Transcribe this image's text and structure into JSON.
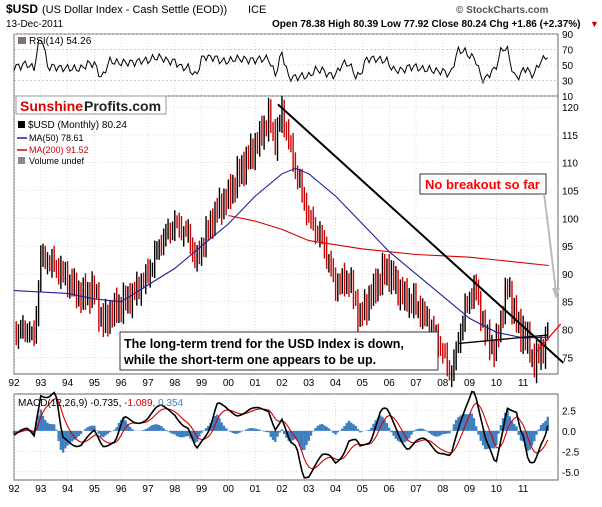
{
  "header": {
    "symbol": "$USD",
    "description": "(US Dollar Index - Cash Settle (EOD))",
    "exchange": "ICE",
    "date": "13-Dec-2011",
    "ohlc": "Open 78.38  High 80.39  Low 77.92  Close 80.24  Chg +1.86 (+2.37%)",
    "watermark": "© StockCharts.com",
    "arrow": "▼"
  },
  "colors": {
    "price_up": "#000000",
    "price_down": "#cc0000",
    "ma50": "#1f1f9a",
    "ma200": "#d40000",
    "trendline": "#000000",
    "annotation_red": "#ff0000",
    "macd_hist": "#3e7fc0",
    "macd_line": "#000000",
    "macd_signal": "#d40000",
    "rsi_fill": "#806f7f",
    "grid": "#c8c8c8",
    "panel_border": "#666666"
  },
  "chart_data": {
    "type": "line",
    "x_labels": [
      "92",
      "93",
      "94",
      "95",
      "96",
      "97",
      "98",
      "99",
      "00",
      "01",
      "02",
      "03",
      "04",
      "05",
      "06",
      "07",
      "08",
      "09",
      "10",
      "11"
    ],
    "price_panel": {
      "legend": [
        "$USD (Monthly) 80.24",
        "MA(50) 78.61",
        "MA(200) 91.52",
        "Volume undef"
      ],
      "ylim": [
        72,
        122
      ],
      "yticks": [
        75,
        80,
        85,
        90,
        95,
        100,
        105,
        110,
        115,
        120
      ],
      "series": [
        {
          "name": "$USD (Monthly)",
          "points": [
            [
              1992.0,
              79.5
            ],
            [
              1992.5,
              80
            ],
            [
              1992.75,
              78.5
            ],
            [
              1993.0,
              93
            ],
            [
              1993.5,
              91.5
            ],
            [
              1994.0,
              89
            ],
            [
              1994.5,
              86
            ],
            [
              1995.0,
              87
            ],
            [
              1995.3,
              81
            ],
            [
              1995.6,
              83
            ],
            [
              1996.0,
              84.5
            ],
            [
              1996.5,
              86.5
            ],
            [
              1997.0,
              90
            ],
            [
              1997.5,
              96
            ],
            [
              1998.0,
              99
            ],
            [
              1998.5,
              97
            ],
            [
              1998.8,
              92
            ],
            [
              1999.0,
              95
            ],
            [
              1999.5,
              101
            ],
            [
              2000.0,
              104
            ],
            [
              2000.5,
              109
            ],
            [
              2001.0,
              113
            ],
            [
              2001.5,
              118
            ],
            [
              2001.75,
              114
            ],
            [
              2002.0,
              119
            ],
            [
              2002.5,
              109
            ],
            [
              2003.0,
              100
            ],
            [
              2003.5,
              96
            ],
            [
              2004.0,
              88
            ],
            [
              2004.5,
              89
            ],
            [
              2004.9,
              82
            ],
            [
              2005.5,
              88
            ],
            [
              2005.9,
              91
            ],
            [
              2006.5,
              86
            ],
            [
              2007.0,
              84.5
            ],
            [
              2007.5,
              81
            ],
            [
              2008.0,
              76
            ],
            [
              2008.3,
              71.5
            ],
            [
              2008.8,
              83
            ],
            [
              2009.2,
              88
            ],
            [
              2009.6,
              79
            ],
            [
              2009.95,
              76
            ],
            [
              2010.4,
              88
            ],
            [
              2010.9,
              79
            ],
            [
              2011.0,
              80
            ],
            [
              2011.4,
              74
            ],
            [
              2011.7,
              76
            ],
            [
              2011.95,
              80.24
            ]
          ]
        },
        {
          "name": "MA(50)",
          "points": [
            [
              1992.0,
              87
            ],
            [
              1994.0,
              86.5
            ],
            [
              1995.0,
              85.5
            ],
            [
              1996.0,
              85
            ],
            [
              1997.0,
              88
            ],
            [
              1998.0,
              91
            ],
            [
              1999.0,
              95
            ],
            [
              2000.0,
              99
            ],
            [
              2001.0,
              104
            ],
            [
              2002.0,
              108
            ],
            [
              2002.5,
              109
            ],
            [
              2003.0,
              108
            ],
            [
              2004.0,
              104
            ],
            [
              2005.0,
              99
            ],
            [
              2006.0,
              94
            ],
            [
              2007.0,
              90
            ],
            [
              2008.0,
              86
            ],
            [
              2009.0,
              82
            ],
            [
              2010.0,
              79.5
            ],
            [
              2011.0,
              78.5
            ],
            [
              2011.95,
              78.61
            ]
          ]
        },
        {
          "name": "MA(200)",
          "points": [
            [
              2000.0,
              100.5
            ],
            [
              2001.0,
              99.5
            ],
            [
              2002.0,
              98
            ],
            [
              2003.0,
              96
            ],
            [
              2005.0,
              94.5
            ],
            [
              2007.0,
              93.5
            ],
            [
              2009.0,
              93
            ],
            [
              2010.0,
              92.5
            ],
            [
              2011.95,
              91.52
            ]
          ]
        }
      ],
      "trendlines": [
        {
          "from": [
            2001.85,
            120.5
          ],
          "to": [
            2012.5,
            74
          ]
        },
        {
          "from": [
            2011.5,
            76
          ],
          "to": [
            2012.4,
            81
          ]
        },
        {
          "from": [
            2008.6,
            77.5
          ],
          "to": [
            2011.9,
            79
          ]
        }
      ],
      "annotations": [
        {
          "text": "No breakout so far"
        },
        {
          "text": "The long-term trend for the USD Index is down,"
        },
        {
          "text": "while the short-term one appears to be up."
        }
      ]
    },
    "rsi_panel": {
      "label": "RSI(14) 54.26",
      "yticks": [
        90,
        70,
        50,
        30,
        10
      ],
      "ylim": [
        10,
        90
      ]
    },
    "macd_panel": {
      "label_parts": [
        "MACD(12,26,9) -0.735,",
        "-1.089,",
        "0.354"
      ],
      "yticks": [
        "2.5",
        "0.0",
        "-2.5",
        "-5.0"
      ],
      "ylim": [
        -6,
        4.5
      ]
    }
  },
  "logo": {
    "part1": "Sunshine",
    "part2": "Profits.com"
  }
}
